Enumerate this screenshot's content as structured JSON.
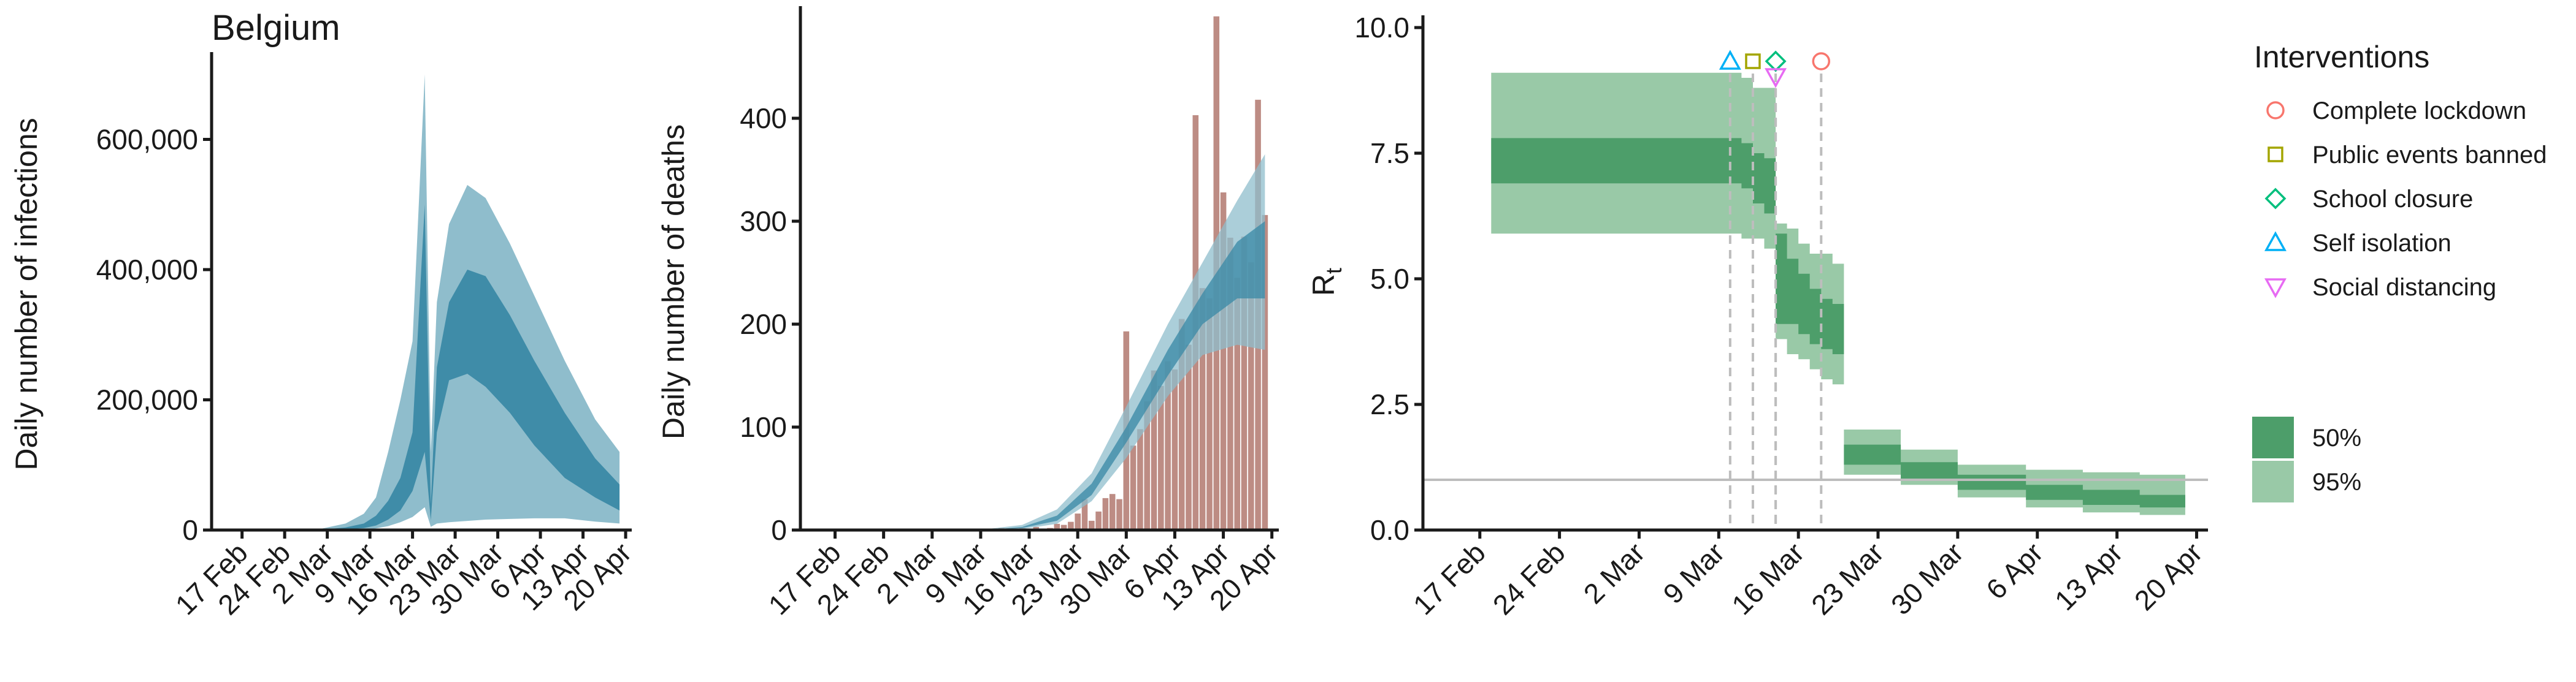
{
  "chart_data": [
    {
      "type": "area",
      "title": "Belgium",
      "xlabel": "",
      "ylabel": "Daily number of infections",
      "xlim": [
        "2020-02-12",
        "2020-04-21"
      ],
      "ylim": [
        0,
        720000
      ],
      "xticks": [
        "17 Feb",
        "24 Feb",
        "2 Mar",
        "9 Mar",
        "16 Mar",
        "23 Mar",
        "30 Mar",
        "6 Apr",
        "13 Apr",
        "20 Apr"
      ],
      "yticks": [
        "0",
        "200,000",
        "400,000",
        "600,000"
      ],
      "colors": {
        "band95": "#8fbdcc",
        "band50": "#3f8ca8"
      },
      "x": [
        "2020-02-15",
        "2020-02-25",
        "2020-03-01",
        "2020-03-05",
        "2020-03-08",
        "2020-03-10",
        "2020-03-12",
        "2020-03-14",
        "2020-03-16",
        "2020-03-18",
        "2020-03-19",
        "2020-03-20",
        "2020-03-22",
        "2020-03-25",
        "2020-03-28",
        "2020-04-01",
        "2020-04-05",
        "2020-04-10",
        "2020-04-15",
        "2020-04-19"
      ],
      "series": [
        {
          "values_upper95": [
            0,
            300,
            2000,
            10000,
            25000,
            50000,
            120000,
            200000,
            290000,
            700000,
            120000,
            350000,
            470000,
            530000,
            510000,
            440000,
            360000,
            260000,
            170000,
            120000
          ],
          "values_lower95": [
            0,
            0,
            0,
            200,
            1000,
            2500,
            6000,
            12000,
            20000,
            35000,
            5000,
            10000,
            12000,
            14000,
            16000,
            17000,
            18000,
            18000,
            13000,
            10000
          ],
          "values_upper50": [
            0,
            60,
            500,
            4000,
            10000,
            22000,
            45000,
            80000,
            150000,
            500000,
            40000,
            250000,
            350000,
            400000,
            390000,
            330000,
            260000,
            180000,
            110000,
            70000
          ],
          "values_lower50": [
            0,
            10,
            150,
            1000,
            3000,
            7000,
            16000,
            30000,
            60000,
            120000,
            15000,
            150000,
            230000,
            240000,
            220000,
            180000,
            130000,
            80000,
            50000,
            30000
          ]
        }
      ]
    },
    {
      "type": "bar",
      "title": "",
      "xlabel": "",
      "ylabel": "Daily number of deaths",
      "xlim": [
        "2020-02-12",
        "2020-04-21"
      ],
      "ylim": [
        0,
        500
      ],
      "xticks": [
        "17 Feb",
        "24 Feb",
        "2 Mar",
        "9 Mar",
        "16 Mar",
        "23 Mar",
        "30 Mar",
        "6 Apr",
        "13 Apr",
        "20 Apr"
      ],
      "yticks": [
        "0",
        "100",
        "200",
        "300",
        "400"
      ],
      "colors": {
        "bars": "#bd8c84",
        "band95": "#8fbdcc",
        "band50": "#3f8ca8"
      },
      "x": [
        "2020-03-11",
        "2020-03-12",
        "2020-03-13",
        "2020-03-14",
        "2020-03-15",
        "2020-03-16",
        "2020-03-17",
        "2020-03-18",
        "2020-03-19",
        "2020-03-20",
        "2020-03-21",
        "2020-03-22",
        "2020-03-23",
        "2020-03-24",
        "2020-03-25",
        "2020-03-26",
        "2020-03-27",
        "2020-03-28",
        "2020-03-29",
        "2020-03-30",
        "2020-03-31",
        "2020-04-01",
        "2020-04-02",
        "2020-04-03",
        "2020-04-04",
        "2020-04-05",
        "2020-04-06",
        "2020-04-07",
        "2020-04-08",
        "2020-04-09",
        "2020-04-10",
        "2020-04-11",
        "2020-04-12",
        "2020-04-13",
        "2020-04-14",
        "2020-04-15",
        "2020-04-16",
        "2020-04-17",
        "2020-04-18",
        "2020-04-19"
      ],
      "values": [
        1,
        2,
        1,
        0,
        2,
        1,
        3,
        1,
        2,
        6,
        5,
        8,
        16,
        30,
        9,
        18,
        31,
        35,
        30,
        193,
        82,
        98,
        125,
        155,
        140,
        164,
        156,
        205,
        180,
        403,
        235,
        225,
        499,
        328,
        284,
        245,
        285,
        260,
        418,
        306
      ],
      "band_x": [
        "2020-03-10",
        "2020-03-15",
        "2020-03-20",
        "2020-03-25",
        "2020-03-30",
        "2020-04-05",
        "2020-04-10",
        "2020-04-15",
        "2020-04-19"
      ],
      "band_upper95": [
        1,
        5,
        20,
        55,
        120,
        200,
        260,
        320,
        365
      ],
      "band_lower95": [
        0,
        1,
        6,
        28,
        70,
        130,
        170,
        180,
        175
      ],
      "band_upper50": [
        0,
        3,
        14,
        45,
        100,
        175,
        230,
        280,
        300
      ],
      "band_lower50": [
        0,
        2,
        9,
        34,
        85,
        150,
        200,
        225,
        225
      ]
    },
    {
      "type": "area",
      "title": "",
      "xlabel": "",
      "ylabel": "R",
      "ylabel_subscript": "t",
      "xlim": [
        "2020-02-12",
        "2020-04-21"
      ],
      "ylim": [
        0,
        10
      ],
      "xticks": [
        "17 Feb",
        "24 Feb",
        "2 Mar",
        "9 Mar",
        "16 Mar",
        "23 Mar",
        "30 Mar",
        "6 Apr",
        "13 Apr",
        "20 Apr"
      ],
      "yticks": [
        "0.0",
        "2.5",
        "5.0",
        "7.5",
        "10.0"
      ],
      "reference_line": 1.0,
      "colors": {
        "band95": "#99c9a7",
        "band50": "#4d9e6a",
        "reference": "#bdbdbd",
        "interventions_line": "#bdbdbd"
      },
      "x": [
        "2020-02-18",
        "2020-03-10",
        "2020-03-11",
        "2020-03-12",
        "2020-03-13",
        "2020-03-14",
        "2020-03-15",
        "2020-03-16",
        "2020-03-17",
        "2020-03-18",
        "2020-03-19",
        "2020-03-20",
        "2020-03-25",
        "2020-03-30",
        "2020-04-05",
        "2020-04-10",
        "2020-04-15",
        "2020-04-19"
      ],
      "r_upper95": [
        9.1,
        9.1,
        9.0,
        8.8,
        8.8,
        6.1,
        6.0,
        5.7,
        5.5,
        5.5,
        5.3,
        2.0,
        1.6,
        1.3,
        1.2,
        1.15,
        1.1,
        1.1
      ],
      "r_lower95": [
        5.9,
        5.9,
        5.8,
        5.8,
        5.6,
        3.8,
        3.5,
        3.4,
        3.2,
        3.0,
        2.9,
        1.1,
        0.9,
        0.65,
        0.45,
        0.35,
        0.3,
        0.25
      ],
      "r_upper50": [
        7.8,
        7.8,
        7.7,
        7.5,
        7.4,
        5.9,
        5.4,
        5.1,
        4.8,
        4.6,
        4.5,
        1.7,
        1.35,
        1.1,
        0.9,
        0.8,
        0.7,
        0.65
      ],
      "r_lower50": [
        6.9,
        6.9,
        6.8,
        6.5,
        6.3,
        4.1,
        4.1,
        3.9,
        3.7,
        3.6,
        3.5,
        1.3,
        1.0,
        0.8,
        0.6,
        0.5,
        0.45,
        0.4
      ],
      "interventions": [
        {
          "name": "Complete lockdown",
          "date": "2020-03-18",
          "marker": "circle",
          "color": "#f8766d"
        },
        {
          "name": "Public events banned",
          "date": "2020-03-12",
          "marker": "square",
          "color": "#a3a500"
        },
        {
          "name": "School closure",
          "date": "2020-03-14",
          "marker": "diamond",
          "color": "#00bf7d"
        },
        {
          "name": "Self isolation",
          "date": "2020-03-10",
          "marker": "triangle-up",
          "color": "#00b0f6"
        },
        {
          "name": "Social distancing",
          "date": "2020-03-14",
          "marker": "triangle-down",
          "color": "#e76bf3"
        }
      ],
      "legend": {
        "title": "Interventions",
        "placement": "right",
        "entries": [
          "Complete lockdown",
          "Public events banned",
          "School closure",
          "Self isolation",
          "Social distancing"
        ],
        "band_entries": [
          "50%",
          "95%"
        ]
      }
    }
  ]
}
